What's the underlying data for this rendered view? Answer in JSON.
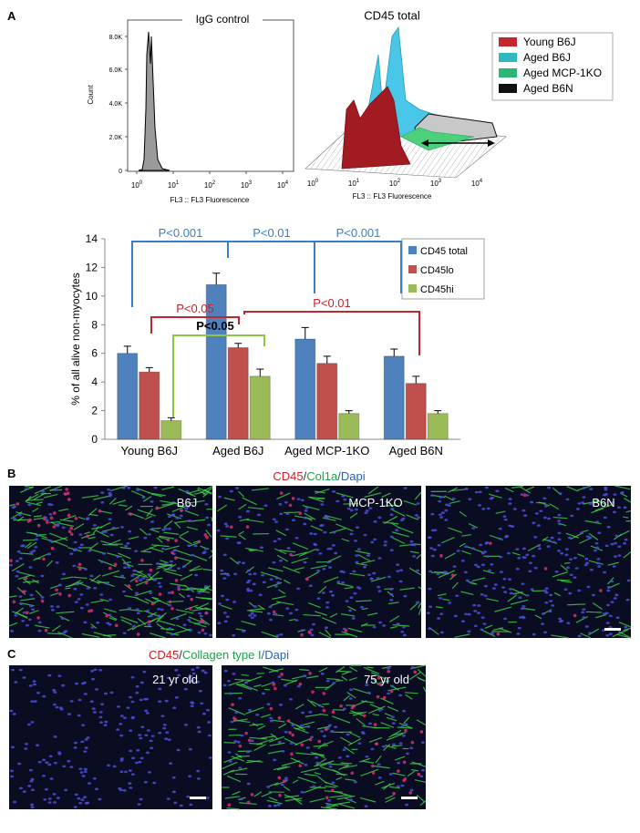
{
  "panel_a": {
    "label": "A",
    "igg": {
      "title": "IgG control",
      "ylabel": "Count",
      "xlabel": "FL3 :: FL3 Fluorescence",
      "yticks": [
        "0",
        "2.0K",
        "4.0K",
        "6.0K",
        "8.0K"
      ],
      "xticks": [
        {
          "base": "10",
          "exp": "0"
        },
        {
          "base": "10",
          "exp": "1"
        },
        {
          "base": "10",
          "exp": "2"
        },
        {
          "base": "10",
          "exp": "3"
        },
        {
          "base": "10",
          "exp": "4"
        }
      ]
    },
    "cd45": {
      "title": "CD45 total",
      "xlabel": "FL3 :: FL3 Fluorescence",
      "xticks": [
        {
          "base": "10",
          "exp": "0"
        },
        {
          "base": "10",
          "exp": "1"
        },
        {
          "base": "10",
          "exp": "2"
        },
        {
          "base": "10",
          "exp": "3"
        },
        {
          "base": "10",
          "exp": "4"
        }
      ],
      "legend": [
        {
          "name": "Young B6J",
          "color": "#c1272d"
        },
        {
          "name": "Aged B6J",
          "color": "#2fb8c0"
        },
        {
          "name": "Aged MCP-1KO",
          "color": "#2bb673"
        },
        {
          "name": "Aged B6N",
          "color": "#111111"
        }
      ]
    }
  },
  "chart_data": {
    "type": "bar",
    "ylabel": "% of all alive non-myocytes",
    "categories": [
      "Young B6J",
      "Aged B6J",
      "Aged MCP-1KO",
      "Aged B6N"
    ],
    "series": [
      {
        "name": "CD45 total",
        "color": "#4f81bd",
        "values": [
          6.0,
          10.8,
          7.0,
          5.8
        ],
        "errors": [
          0.5,
          0.8,
          0.8,
          0.5
        ]
      },
      {
        "name": "CD45lo",
        "color": "#c0504d",
        "values": [
          4.7,
          6.4,
          5.3,
          3.9
        ],
        "errors": [
          0.3,
          0.3,
          0.5,
          0.5
        ]
      },
      {
        "name": "CD45hi",
        "color": "#9bbb59",
        "values": [
          1.3,
          4.4,
          1.8,
          1.8
        ],
        "errors": [
          0.2,
          0.5,
          0.2,
          0.2
        ]
      }
    ],
    "ylim": [
      0,
      14
    ],
    "yticks": [
      0,
      2,
      4,
      6,
      8,
      10,
      12,
      14
    ],
    "legend_position": "upper right",
    "annotations": [
      {
        "text": "P<0.001",
        "color": "#3a7dc9"
      },
      {
        "text": "P<0.01",
        "color": "#3a7dc9"
      },
      {
        "text": "P<0.001",
        "color": "#3a7dc9"
      },
      {
        "text": "P<0.05",
        "color": "#c0262d"
      },
      {
        "text": "P<0.01",
        "color": "#c0262d"
      },
      {
        "text": "P<0.05",
        "color": "#8dc63f",
        "text_color": "#000000",
        "bold": true
      }
    ]
  },
  "panel_b": {
    "label": "B",
    "header": [
      {
        "text": "CD45",
        "color": "#d0202a"
      },
      {
        "text": "/",
        "color": "#333333"
      },
      {
        "text": "Col1a",
        "color": "#1fa14a"
      },
      {
        "text": "/Dapi",
        "color": "#2b5fb0"
      }
    ],
    "images": [
      "B6J",
      "MCP-1KO",
      "B6N"
    ]
  },
  "panel_c": {
    "label": "C",
    "header": [
      {
        "text": "CD45",
        "color": "#d0202a"
      },
      {
        "text": "/",
        "color": "#333333"
      },
      {
        "text": "Collagen type I",
        "color": "#1fa14a"
      },
      {
        "text": "/Dapi",
        "color": "#2b5fb0"
      }
    ],
    "images": [
      "21 yr old",
      "75 yr old"
    ]
  }
}
